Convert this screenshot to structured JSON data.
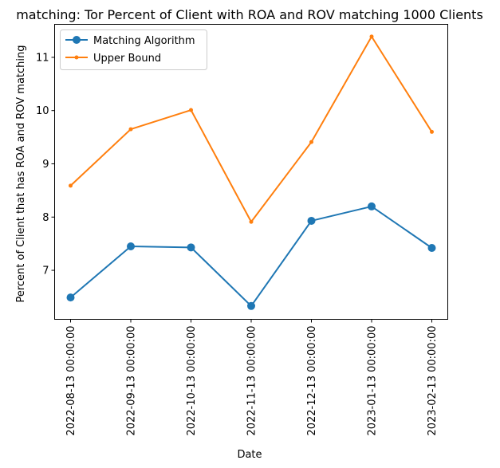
{
  "chart_data": {
    "type": "line",
    "title": "matching: Tor Percent of Client with ROA and ROV matching 1000 Clients",
    "xlabel": "Date",
    "ylabel": "Percent of Client that has ROA and ROV matching",
    "categories": [
      "2022-08-13 00:00:00",
      "2022-09-13 00:00:00",
      "2022-10-13 00:00:00",
      "2022-11-13 00:00:00",
      "2022-12-13 00:00:00",
      "2023-01-13 00:00:00",
      "2023-02-13 00:00:00"
    ],
    "ylim": [
      6.08,
      11.62
    ],
    "yticks": [
      7,
      8,
      9,
      10,
      11
    ],
    "grid": false,
    "legend_position": "top-left",
    "series": [
      {
        "name": "Matching Algorithm",
        "values": [
          6.49,
          7.45,
          7.43,
          6.33,
          7.93,
          8.2,
          7.42
        ],
        "color": "#1f77b4",
        "marker": "circle-large"
      },
      {
        "name": "Upper Bound",
        "values": [
          8.59,
          9.65,
          10.01,
          7.91,
          9.41,
          11.39,
          9.6
        ],
        "color": "#ff7f0e",
        "marker": "circle-small"
      }
    ]
  }
}
